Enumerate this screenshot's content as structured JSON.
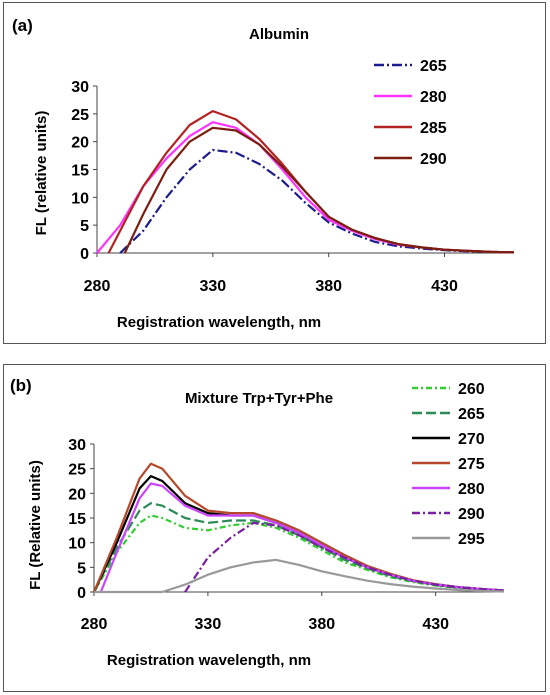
{
  "charts": [
    {
      "panel_label": "(a)",
      "colors": [
        "#1c1c8c",
        "#ff33ff",
        "#b22222",
        "#7a1f0f"
      ],
      "dash": [
        "10,3,2,3",
        "",
        "",
        ""
      ]
    },
    {
      "panel_label": "(b)",
      "colors": [
        "#33cc33",
        "#2e8b57",
        "#000000",
        "#b5472a",
        "#cc44ff",
        "#7a1fa0",
        "#999999"
      ],
      "dash": [
        "6,3,2,3",
        "10,4",
        "",
        "",
        "",
        "8,3,2,3",
        ""
      ]
    }
  ],
  "chart_data": [
    {
      "type": "line",
      "title": "Albumin",
      "xlabel": "Registration wavelength, nm",
      "ylabel": "FL (relative units)",
      "xlim": [
        280,
        460
      ],
      "ylim": [
        0,
        30
      ],
      "xticks": [
        280,
        330,
        380,
        430
      ],
      "yticks": [
        0,
        5,
        10,
        15,
        20,
        25,
        30
      ],
      "legend_position": "right",
      "series": [
        {
          "name": "265",
          "x": [
            290,
            300,
            310,
            320,
            330,
            340,
            350,
            360,
            370,
            380,
            390,
            400,
            410,
            420,
            430,
            440,
            450,
            460
          ],
          "y": [
            0,
            4,
            10,
            15,
            18.5,
            18,
            16,
            13,
            9,
            5.5,
            3.5,
            2,
            1.2,
            0.8,
            0.5,
            0.3,
            0.2,
            0.1
          ]
        },
        {
          "name": "280",
          "x": [
            280,
            290,
            300,
            310,
            320,
            330,
            340,
            350,
            360,
            370,
            380,
            390,
            400,
            410,
            420,
            430,
            440,
            450,
            460
          ],
          "y": [
            0,
            5,
            12,
            17,
            21,
            23.5,
            22.5,
            19.5,
            15,
            10,
            6,
            4,
            2.5,
            1.5,
            1,
            0.6,
            0.4,
            0.2,
            0.1
          ]
        },
        {
          "name": "285",
          "x": [
            285,
            290,
            300,
            310,
            320,
            330,
            340,
            350,
            360,
            370,
            380,
            390,
            400,
            410,
            420,
            430,
            440,
            450,
            460
          ],
          "y": [
            0,
            4,
            12,
            18,
            23,
            25.5,
            24,
            20.5,
            16,
            11,
            6.5,
            4.2,
            2.7,
            1.6,
            1,
            0.6,
            0.4,
            0.2,
            0.1
          ]
        },
        {
          "name": "290",
          "x": [
            292,
            300,
            310,
            320,
            330,
            340,
            350,
            360,
            370,
            380,
            390,
            400,
            410,
            420,
            430,
            440,
            450,
            460
          ],
          "y": [
            0,
            7,
            15,
            20,
            22.5,
            22,
            19.5,
            15.5,
            11,
            6.5,
            4.2,
            2.7,
            1.6,
            1,
            0.6,
            0.4,
            0.2,
            0.1
          ]
        }
      ]
    },
    {
      "type": "line",
      "title": "Mixture Trp+Tyr+Phe",
      "xlabel": "Registration wavelength, nm",
      "ylabel": "FL (Relative units)",
      "xlim": [
        280,
        460
      ],
      "ylim": [
        0,
        30
      ],
      "xticks": [
        280,
        330,
        380,
        430
      ],
      "yticks": [
        0,
        5,
        10,
        15,
        20,
        25,
        30
      ],
      "legend_position": "right",
      "series": [
        {
          "name": "260",
          "x": [
            280,
            290,
            300,
            305,
            310,
            320,
            330,
            340,
            350,
            360,
            370,
            380,
            390,
            400,
            410,
            420,
            430,
            440,
            450,
            460
          ],
          "y": [
            0,
            8,
            14,
            15.5,
            15,
            13,
            12.5,
            13.5,
            14,
            13,
            11,
            8.5,
            6,
            4.5,
            3,
            2,
            1.3,
            0.8,
            0.5,
            0.3
          ]
        },
        {
          "name": "265",
          "x": [
            280,
            290,
            300,
            305,
            310,
            320,
            330,
            340,
            350,
            360,
            370,
            380,
            390,
            400,
            410,
            420,
            430,
            440,
            450,
            460
          ],
          "y": [
            0,
            9,
            16.5,
            18,
            17.5,
            15,
            14,
            14.5,
            14.5,
            13.5,
            11.5,
            9,
            6.5,
            4.8,
            3.2,
            2.2,
            1.4,
            0.9,
            0.5,
            0.3
          ]
        },
        {
          "name": "270",
          "x": [
            280,
            290,
            300,
            305,
            310,
            320,
            330,
            340,
            350,
            360,
            370,
            380,
            390,
            400,
            410,
            420,
            430,
            440,
            450,
            460
          ],
          "y": [
            0,
            10,
            21,
            23.5,
            22.5,
            18,
            16,
            15.5,
            15.5,
            14,
            12,
            9.5,
            7,
            5,
            3.5,
            2.3,
            1.5,
            1,
            0.6,
            0.3
          ]
        },
        {
          "name": "275",
          "x": [
            280,
            290,
            300,
            305,
            310,
            320,
            330,
            340,
            350,
            360,
            370,
            380,
            390,
            400,
            410,
            420,
            430,
            440,
            450,
            460
          ],
          "y": [
            0,
            11,
            23,
            26,
            25,
            19.5,
            16.5,
            16,
            16,
            14.5,
            12.5,
            10,
            7.5,
            5.3,
            3.7,
            2.4,
            1.6,
            1,
            0.6,
            0.3
          ]
        },
        {
          "name": "280",
          "x": [
            283,
            290,
            300,
            305,
            310,
            320,
            330,
            340,
            350,
            360,
            370,
            380,
            390,
            400,
            410,
            420,
            430,
            440,
            450,
            460
          ],
          "y": [
            0,
            8,
            19,
            22,
            21.5,
            17.5,
            15.5,
            15.5,
            15.5,
            14,
            12,
            9.5,
            7,
            5,
            3.5,
            2.3,
            1.5,
            1,
            0.6,
            0.3
          ]
        },
        {
          "name": "290",
          "x": [
            320,
            330,
            340,
            350,
            360,
            370,
            380,
            390,
            400,
            410,
            420,
            430,
            440,
            450,
            460
          ],
          "y": [
            0,
            7,
            11,
            14,
            13.5,
            11.5,
            9,
            7,
            5,
            3.5,
            2.3,
            1.5,
            1,
            0.6,
            0.3
          ]
        },
        {
          "name": "295",
          "x": [
            280,
            310,
            320,
            330,
            340,
            350,
            360,
            370,
            380,
            390,
            400,
            410,
            420,
            430,
            440,
            450,
            460
          ],
          "y": [
            0,
            0,
            1.5,
            3.5,
            5,
            6,
            6.5,
            5.5,
            4.2,
            3.2,
            2.3,
            1.6,
            1.1,
            0.7,
            0.4,
            0.2,
            0.1
          ]
        }
      ]
    }
  ]
}
